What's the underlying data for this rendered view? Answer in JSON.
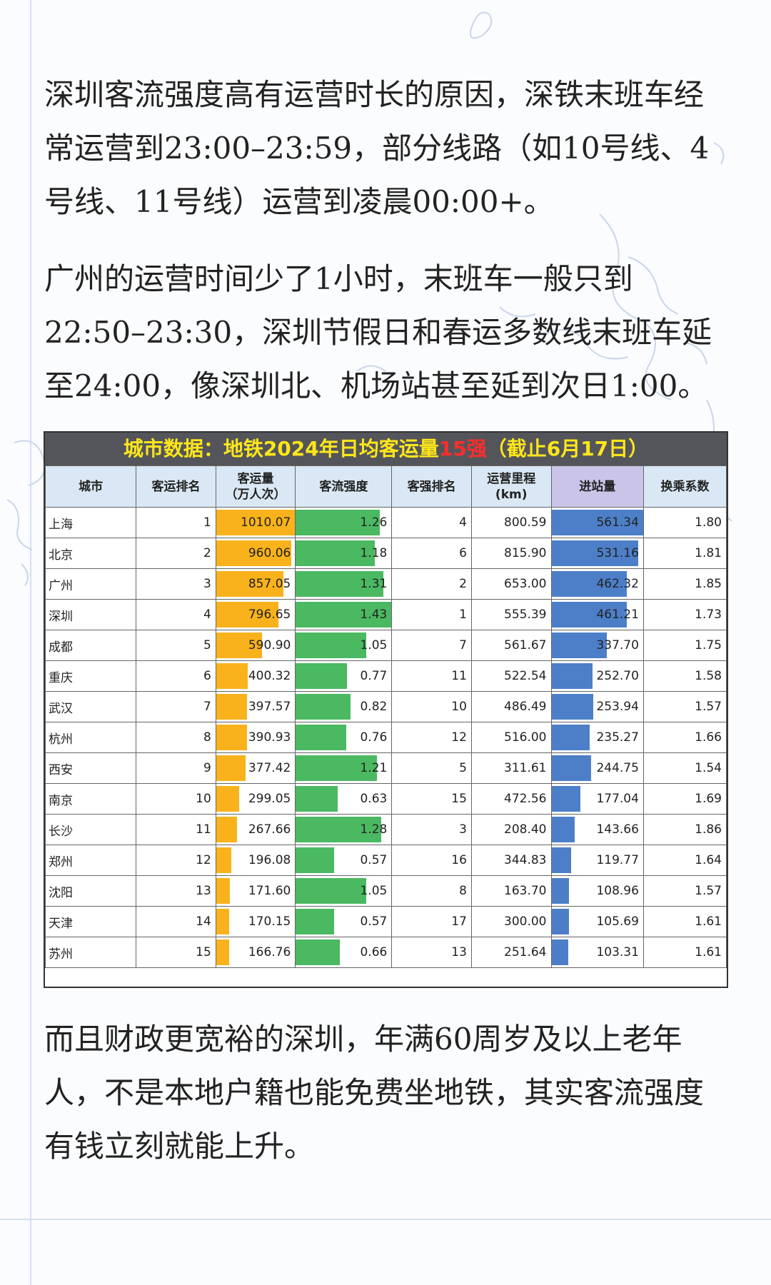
{
  "paragraphs": {
    "p1": "深圳客流强度高有运营时长的原因，深铁末班车经常运营到23:00–23:59，部分线路（如10号线、4号线、11号线）运营到凌晨00:00+。",
    "p2": "广州的运营时间少了1小时，末班车一般只到22:50–23:30，深圳节假日和春运多数线末班车延至24:00，像深圳北、机场站甚至延到次日1:00。",
    "p3": "而且财政更宽裕的深圳，年满60周岁及以上老年人，不是本地户籍也能免费坐地铁，其实客流强度有钱立刻就能上升。"
  },
  "table": {
    "title_pre": "城市数据：地铁2024年日均客运量",
    "title_hl": "15强",
    "title_post": "（截止6月17日）",
    "headers": {
      "city": "城市",
      "vol_rank": "客运排名",
      "vol_l1": "客运量",
      "vol_l2": "（万人次）",
      "intensity": "客流强度",
      "int_rank": "客强排名",
      "km_l1": "运营里程",
      "km_l2": "(km)",
      "entries": "进站量",
      "transfer": "换乘系数"
    },
    "colors": {
      "volume_bar": "#f9b21b",
      "intensity_bar": "#4bb862",
      "entries_bar": "#4d7fc9",
      "title_text": "#ffe61a",
      "title_highlight": "#ff2d2d"
    },
    "rows": [
      {
        "city": "上海",
        "vol_rank": "1",
        "volume": "1010.07",
        "intensity": "1.26",
        "int_rank": "4",
        "km": "800.59",
        "entries": "561.34",
        "transfer": "1.80"
      },
      {
        "city": "北京",
        "vol_rank": "2",
        "volume": "960.06",
        "intensity": "1.18",
        "int_rank": "6",
        "km": "815.90",
        "entries": "531.16",
        "transfer": "1.81"
      },
      {
        "city": "广州",
        "vol_rank": "3",
        "volume": "857.05",
        "intensity": "1.31",
        "int_rank": "2",
        "km": "653.00",
        "entries": "462.32",
        "transfer": "1.85"
      },
      {
        "city": "深圳",
        "vol_rank": "4",
        "volume": "796.65",
        "intensity": "1.43",
        "int_rank": "1",
        "km": "555.39",
        "entries": "461.21",
        "transfer": "1.73"
      },
      {
        "city": "成都",
        "vol_rank": "5",
        "volume": "590.90",
        "intensity": "1.05",
        "int_rank": "7",
        "km": "561.67",
        "entries": "337.70",
        "transfer": "1.75"
      },
      {
        "city": "重庆",
        "vol_rank": "6",
        "volume": "400.32",
        "intensity": "0.77",
        "int_rank": "11",
        "km": "522.54",
        "entries": "252.70",
        "transfer": "1.58"
      },
      {
        "city": "武汉",
        "vol_rank": "7",
        "volume": "397.57",
        "intensity": "0.82",
        "int_rank": "10",
        "km": "486.49",
        "entries": "253.94",
        "transfer": "1.57"
      },
      {
        "city": "杭州",
        "vol_rank": "8",
        "volume": "390.93",
        "intensity": "0.76",
        "int_rank": "12",
        "km": "516.00",
        "entries": "235.27",
        "transfer": "1.66"
      },
      {
        "city": "西安",
        "vol_rank": "9",
        "volume": "377.42",
        "intensity": "1.21",
        "int_rank": "5",
        "km": "311.61",
        "entries": "244.75",
        "transfer": "1.54"
      },
      {
        "city": "南京",
        "vol_rank": "10",
        "volume": "299.05",
        "intensity": "0.63",
        "int_rank": "15",
        "km": "472.56",
        "entries": "177.04",
        "transfer": "1.69"
      },
      {
        "city": "长沙",
        "vol_rank": "11",
        "volume": "267.66",
        "intensity": "1.28",
        "int_rank": "3",
        "km": "208.40",
        "entries": "143.66",
        "transfer": "1.86"
      },
      {
        "city": "郑州",
        "vol_rank": "12",
        "volume": "196.08",
        "intensity": "0.57",
        "int_rank": "16",
        "km": "344.83",
        "entries": "119.77",
        "transfer": "1.64"
      },
      {
        "city": "沈阳",
        "vol_rank": "13",
        "volume": "171.60",
        "intensity": "1.05",
        "int_rank": "8",
        "km": "163.70",
        "entries": "108.96",
        "transfer": "1.57"
      },
      {
        "city": "天津",
        "vol_rank": "14",
        "volume": "170.15",
        "intensity": "0.57",
        "int_rank": "17",
        "km": "300.00",
        "entries": "105.69",
        "transfer": "1.61"
      },
      {
        "city": "苏州",
        "vol_rank": "15",
        "volume": "166.76",
        "intensity": "0.66",
        "int_rank": "13",
        "km": "251.64",
        "entries": "103.31",
        "transfer": "1.61"
      }
    ]
  }
}
